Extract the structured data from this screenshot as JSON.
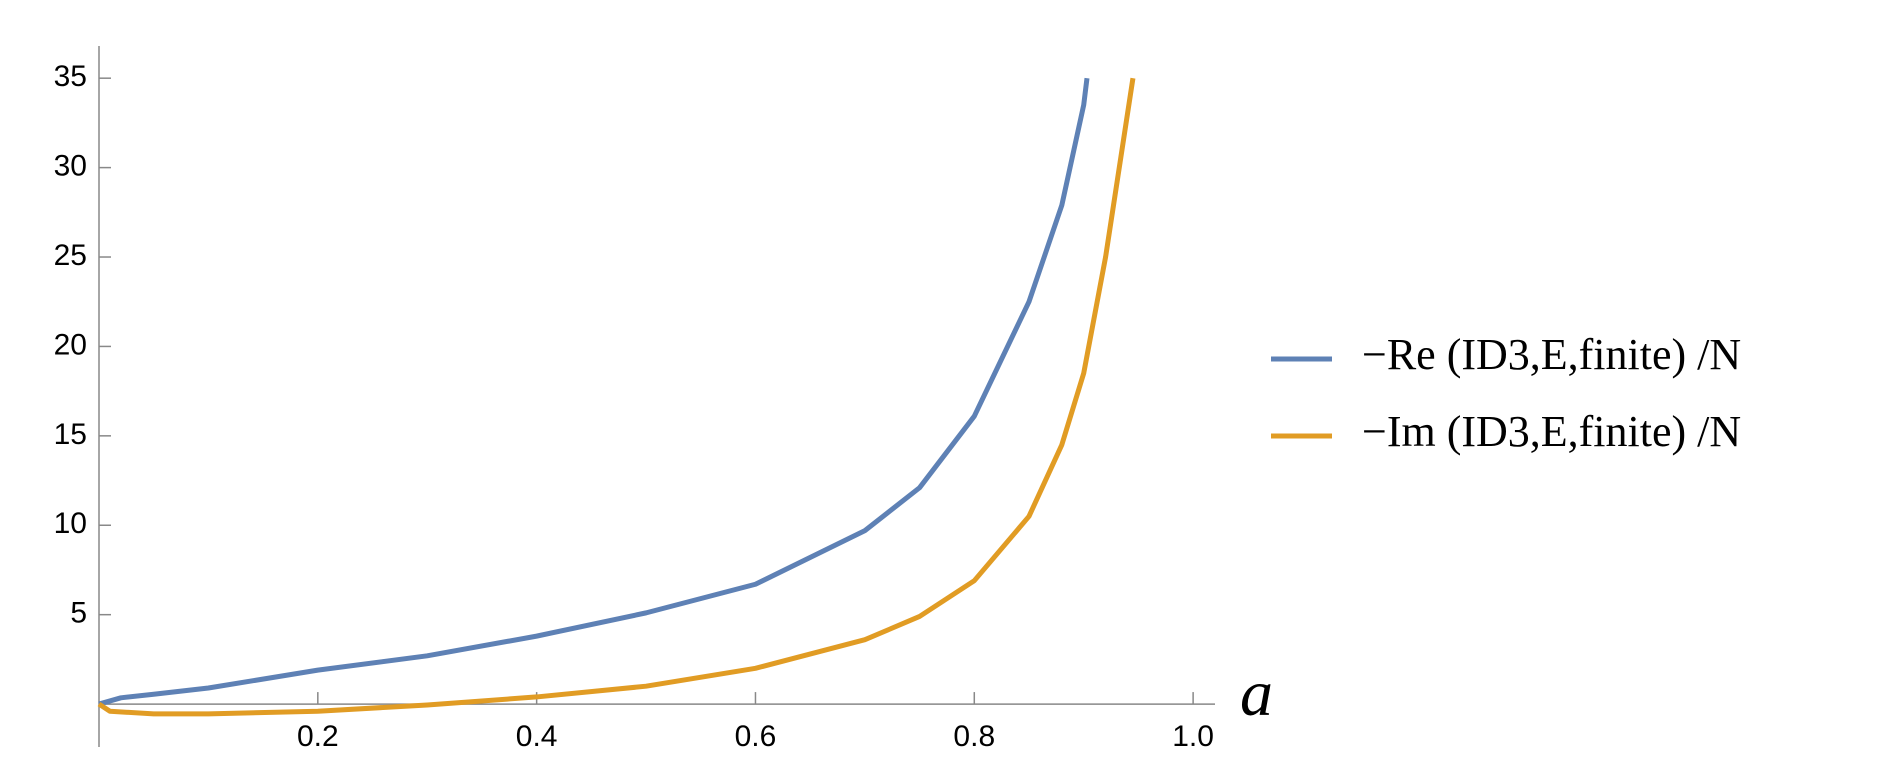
{
  "chart_data": {
    "type": "line",
    "x_label": "a",
    "xlim": [
      0,
      1.02
    ],
    "ylim": [
      -2.4,
      36.8
    ],
    "xticks": [
      0.2,
      0.4,
      0.6,
      0.8,
      {
        "value": 1.0,
        "label": "1.0"
      }
    ],
    "yticks": [
      5,
      10,
      15,
      20,
      25,
      30,
      35
    ],
    "series": [
      {
        "name": "−Re (ID3,E,finite) /N",
        "color": "#5e81b5",
        "x": [
          0,
          0.02,
          0.05,
          0.1,
          0.2,
          0.3,
          0.4,
          0.5,
          0.6,
          0.7,
          0.75,
          0.8,
          0.85,
          0.88,
          0.9,
          0.903
        ],
        "values": [
          0,
          0.35,
          0.55,
          0.9,
          1.9,
          2.7,
          3.8,
          5.1,
          6.7,
          9.7,
          12.1,
          16.1,
          22.5,
          27.9,
          33.5,
          35
        ]
      },
      {
        "name": "−Im (ID3,E,finite) /N",
        "color": "#e19c24",
        "x": [
          0,
          0.01,
          0.05,
          0.1,
          0.2,
          0.3,
          0.4,
          0.5,
          0.6,
          0.7,
          0.75,
          0.8,
          0.85,
          0.88,
          0.9,
          0.92,
          0.935,
          0.945
        ],
        "values": [
          0,
          -0.4,
          -0.55,
          -0.55,
          -0.4,
          -0.05,
          0.4,
          1.0,
          2.0,
          3.6,
          4.9,
          6.9,
          10.5,
          14.5,
          18.5,
          25,
          31,
          35
        ]
      }
    ]
  }
}
